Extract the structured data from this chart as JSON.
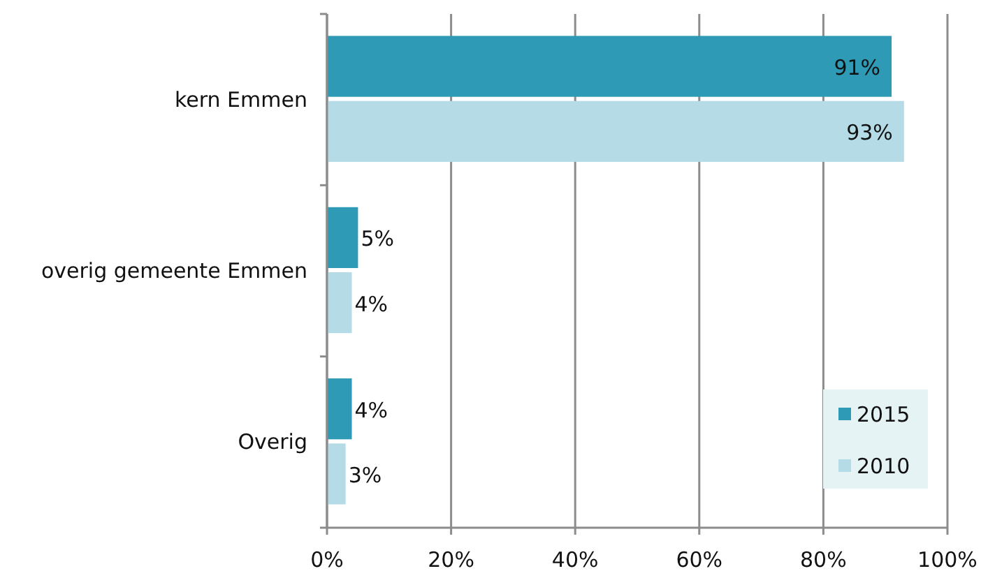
{
  "chart_data": {
    "type": "bar",
    "orientation": "horizontal",
    "categories": [
      "kern Emmen",
      "overig gemeente Emmen",
      "Overig"
    ],
    "series": [
      {
        "name": "2015",
        "color": "#2e9ab5",
        "values": [
          91,
          5,
          4
        ]
      },
      {
        "name": "2010",
        "color": "#b5dce6",
        "values": [
          93,
          4,
          3
        ]
      }
    ],
    "value_labels": [
      [
        "91%",
        "5%",
        "4%"
      ],
      [
        "93%",
        "4%",
        "3%"
      ]
    ],
    "xlim": [
      0,
      100
    ],
    "xticks": [
      {
        "value": 0,
        "label": "0%"
      },
      {
        "value": 20,
        "label": "20%"
      },
      {
        "value": 40,
        "label": "40%"
      },
      {
        "value": 60,
        "label": "60%"
      },
      {
        "value": 80,
        "label": "80%"
      },
      {
        "value": 100,
        "label": "100%"
      }
    ],
    "grid": "x",
    "legend": "bottom right"
  }
}
